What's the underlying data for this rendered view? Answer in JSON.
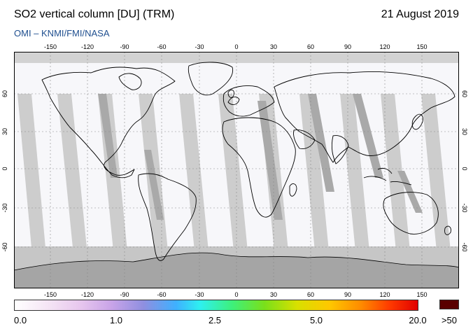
{
  "header": {
    "title": "SO2 vertical column [DU] (TRM)",
    "date": "21 August 2019",
    "subtitle": "OMI  –  KNMI/FMI/NASA"
  },
  "map": {
    "lon_ticks": [
      "-150",
      "-120",
      "-90",
      "-60",
      "-30",
      "0",
      "30",
      "60",
      "90",
      "120",
      "150"
    ],
    "lat_ticks_left": [
      "60",
      "30",
      "0",
      "-30",
      "-60"
    ],
    "lat_ticks_right": [
      "60",
      "30",
      "0",
      "-30",
      "-60"
    ],
    "colors": {
      "data_bg": "#f7f7fa",
      "gap_light": "#c9c9c9",
      "gap_dark": "#a8a8a8",
      "polar_gray": "#bdbdbd",
      "antarctica": "#a9a9a9",
      "coast": "#000000",
      "grid": "#888888"
    }
  },
  "colorbar": {
    "labels": [
      "0.0",
      "1.0",
      "2.5",
      "5.0",
      "20.0",
      ">50"
    ],
    "gradient": [
      "#ffffff",
      "#f5e6f5",
      "#e8c8ee",
      "#c9a4e8",
      "#8f8fe0",
      "#3fb0ff",
      "#2ef0f0",
      "#3ef07a",
      "#7ae01a",
      "#d8e000",
      "#ffc800",
      "#ff8a00",
      "#ff3a00",
      "#e00000"
    ],
    "overflow_color": "#5a0000"
  }
}
